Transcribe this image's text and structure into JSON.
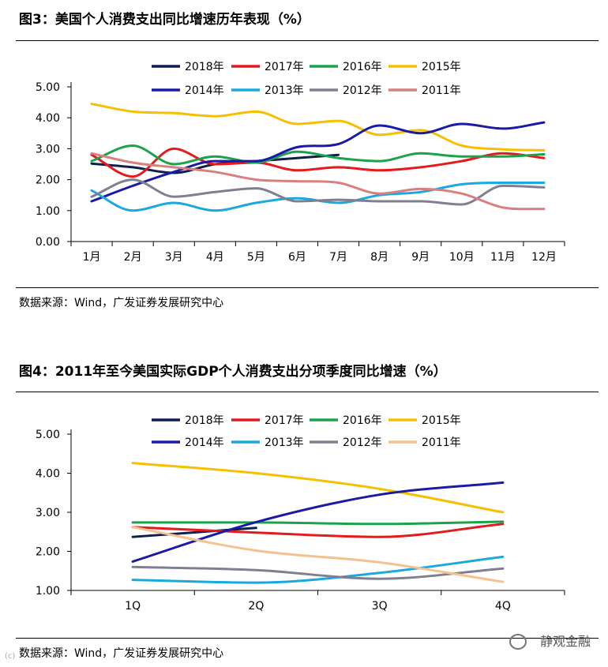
{
  "figures": [
    {
      "title": "图3：美国个人消费支出同比增速历年表现（%）",
      "source": "数据来源：Wind，广发证券发展研究中心"
    },
    {
      "title": "图4：2011年至今美国实际GDP个人消费支出分项季度同比增速（%）",
      "source": "数据来源：Wind，广发证券发展研究中心"
    }
  ],
  "watermark": "静观金融",
  "corner_mark": "(c)",
  "chart_data": [
    {
      "type": "line",
      "title": "图3：美国个人消费支出同比增速历年表现（%）",
      "xlabel": "",
      "ylabel": "",
      "categories": [
        "1月",
        "2月",
        "3月",
        "4月",
        "5月",
        "6月",
        "7月",
        "8月",
        "9月",
        "10月",
        "11月",
        "12月"
      ],
      "ylim": [
        0,
        5
      ],
      "yticks": [
        "0.00",
        "1.00",
        "2.00",
        "3.00",
        "4.00",
        "5.00"
      ],
      "legend": "top",
      "series": [
        {
          "name": "2018年",
          "color": "#0d1f4d",
          "values": [
            2.52,
            2.4,
            2.22,
            2.5,
            2.6,
            2.7,
            2.8,
            null,
            null,
            null,
            null,
            null
          ]
        },
        {
          "name": "2017年",
          "color": "#e41a1c",
          "values": [
            2.8,
            2.1,
            3.0,
            2.5,
            2.55,
            2.3,
            2.4,
            2.3,
            2.4,
            2.6,
            2.85,
            2.7
          ]
        },
        {
          "name": "2016年",
          "color": "#1aa34a",
          "values": [
            2.6,
            3.1,
            2.5,
            2.75,
            2.55,
            2.9,
            2.7,
            2.6,
            2.85,
            2.75,
            2.75,
            2.82
          ]
        },
        {
          "name": "2015年",
          "color": "#f6c000",
          "values": [
            4.45,
            4.2,
            4.15,
            4.05,
            4.2,
            3.8,
            3.9,
            3.45,
            3.6,
            3.1,
            2.98,
            2.95
          ]
        },
        {
          "name": "2014年",
          "color": "#1a1aa8",
          "values": [
            1.3,
            1.8,
            2.25,
            2.6,
            2.6,
            3.05,
            3.15,
            3.75,
            3.5,
            3.8,
            3.65,
            3.85
          ]
        },
        {
          "name": "2013年",
          "color": "#1aa8e0",
          "values": [
            1.65,
            1.0,
            1.25,
            1.0,
            1.25,
            1.4,
            1.25,
            1.5,
            1.6,
            1.85,
            1.9,
            1.9
          ]
        },
        {
          "name": "2012年",
          "color": "#7f7f8f",
          "values": [
            1.45,
            2.0,
            1.45,
            1.6,
            1.72,
            1.3,
            1.35,
            1.3,
            1.3,
            1.2,
            1.8,
            1.75
          ]
        },
        {
          "name": "2011年",
          "color": "#d97f7f",
          "values": [
            2.85,
            2.55,
            2.4,
            2.25,
            2.0,
            1.95,
            1.9,
            1.55,
            1.7,
            1.55,
            1.1,
            1.05
          ]
        }
      ]
    },
    {
      "type": "line",
      "title": "图4：2011年至今美国实际GDP个人消费支出分项季度同比增速（%）",
      "xlabel": "",
      "ylabel": "",
      "categories": [
        "1Q",
        "2Q",
        "3Q",
        "4Q"
      ],
      "ylim": [
        1,
        5
      ],
      "yticks": [
        "1.00",
        "2.00",
        "3.00",
        "4.00",
        "5.00"
      ],
      "legend": "top",
      "series": [
        {
          "name": "2018年",
          "color": "#0d1f4d",
          "values": [
            2.37,
            2.6,
            null,
            null
          ]
        },
        {
          "name": "2017年",
          "color": "#e41a1c",
          "values": [
            2.62,
            2.48,
            2.37,
            2.7
          ]
        },
        {
          "name": "2016年",
          "color": "#1aa34a",
          "values": [
            2.74,
            2.74,
            2.7,
            2.76
          ]
        },
        {
          "name": "2015年",
          "color": "#f6c000",
          "values": [
            4.26,
            4.0,
            3.6,
            3.0
          ]
        },
        {
          "name": "2014年",
          "color": "#1a1aa8",
          "values": [
            1.74,
            2.75,
            3.45,
            3.76
          ]
        },
        {
          "name": "2013年",
          "color": "#1aa8e0",
          "values": [
            1.27,
            1.2,
            1.45,
            1.86
          ]
        },
        {
          "name": "2012年",
          "color": "#7f7f8f",
          "values": [
            1.6,
            1.52,
            1.3,
            1.56
          ]
        },
        {
          "name": "2011年",
          "color": "#f4c18f",
          "values": [
            2.62,
            2.02,
            1.72,
            1.22
          ]
        }
      ]
    }
  ]
}
